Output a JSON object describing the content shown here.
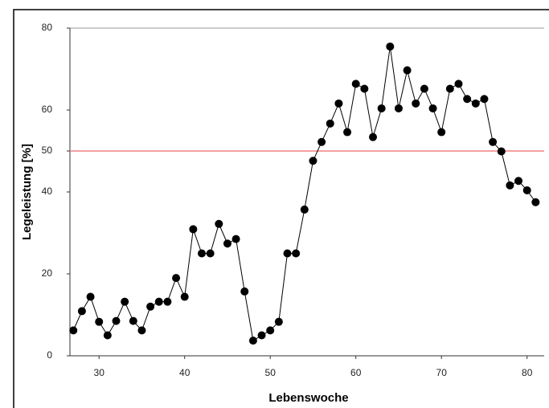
{
  "chart_data": {
    "type": "line",
    "x_label": "Lebenswoche",
    "y_label": "Legeleistung [%]",
    "x": [
      27,
      28,
      29,
      30,
      31,
      32,
      33,
      34,
      35,
      36,
      37,
      38,
      39,
      40,
      41,
      42,
      43,
      44,
      45,
      46,
      47,
      48,
      49,
      50,
      51,
      52,
      53,
      54,
      55,
      56,
      57,
      58,
      59,
      60,
      61,
      62,
      63,
      64,
      65,
      66,
      67,
      68,
      69,
      70,
      71,
      72,
      73,
      74,
      75,
      76,
      77,
      78,
      79,
      80,
      81
    ],
    "values": [
      6.2,
      10.9,
      14.4,
      8.3,
      5.0,
      8.5,
      13.2,
      8.5,
      6.2,
      12.0,
      13.2,
      13.2,
      19.0,
      14.4,
      30.9,
      25.0,
      25.0,
      32.2,
      27.4,
      28.5,
      15.7,
      3.7,
      5.0,
      6.2,
      8.3,
      25.0,
      25.0,
      35.7,
      47.6,
      52.2,
      56.7,
      61.6,
      54.6,
      66.4,
      65.2,
      53.4,
      60.4,
      75.5,
      60.4,
      69.7,
      61.6,
      65.2,
      60.4,
      54.6,
      65.2,
      66.4,
      62.7,
      61.6,
      62.7,
      52.2,
      49.9,
      41.6,
      42.7,
      40.4,
      37.5
    ],
    "color": "#000000",
    "reference_line": 50,
    "reference_color": "#f08080",
    "xlim": [
      26.6,
      82
    ],
    "xticks": [
      30,
      40,
      50,
      60,
      70,
      80
    ],
    "ylim": [
      0,
      80
    ],
    "yticks": [
      0,
      20,
      40,
      50,
      60,
      80
    ]
  }
}
